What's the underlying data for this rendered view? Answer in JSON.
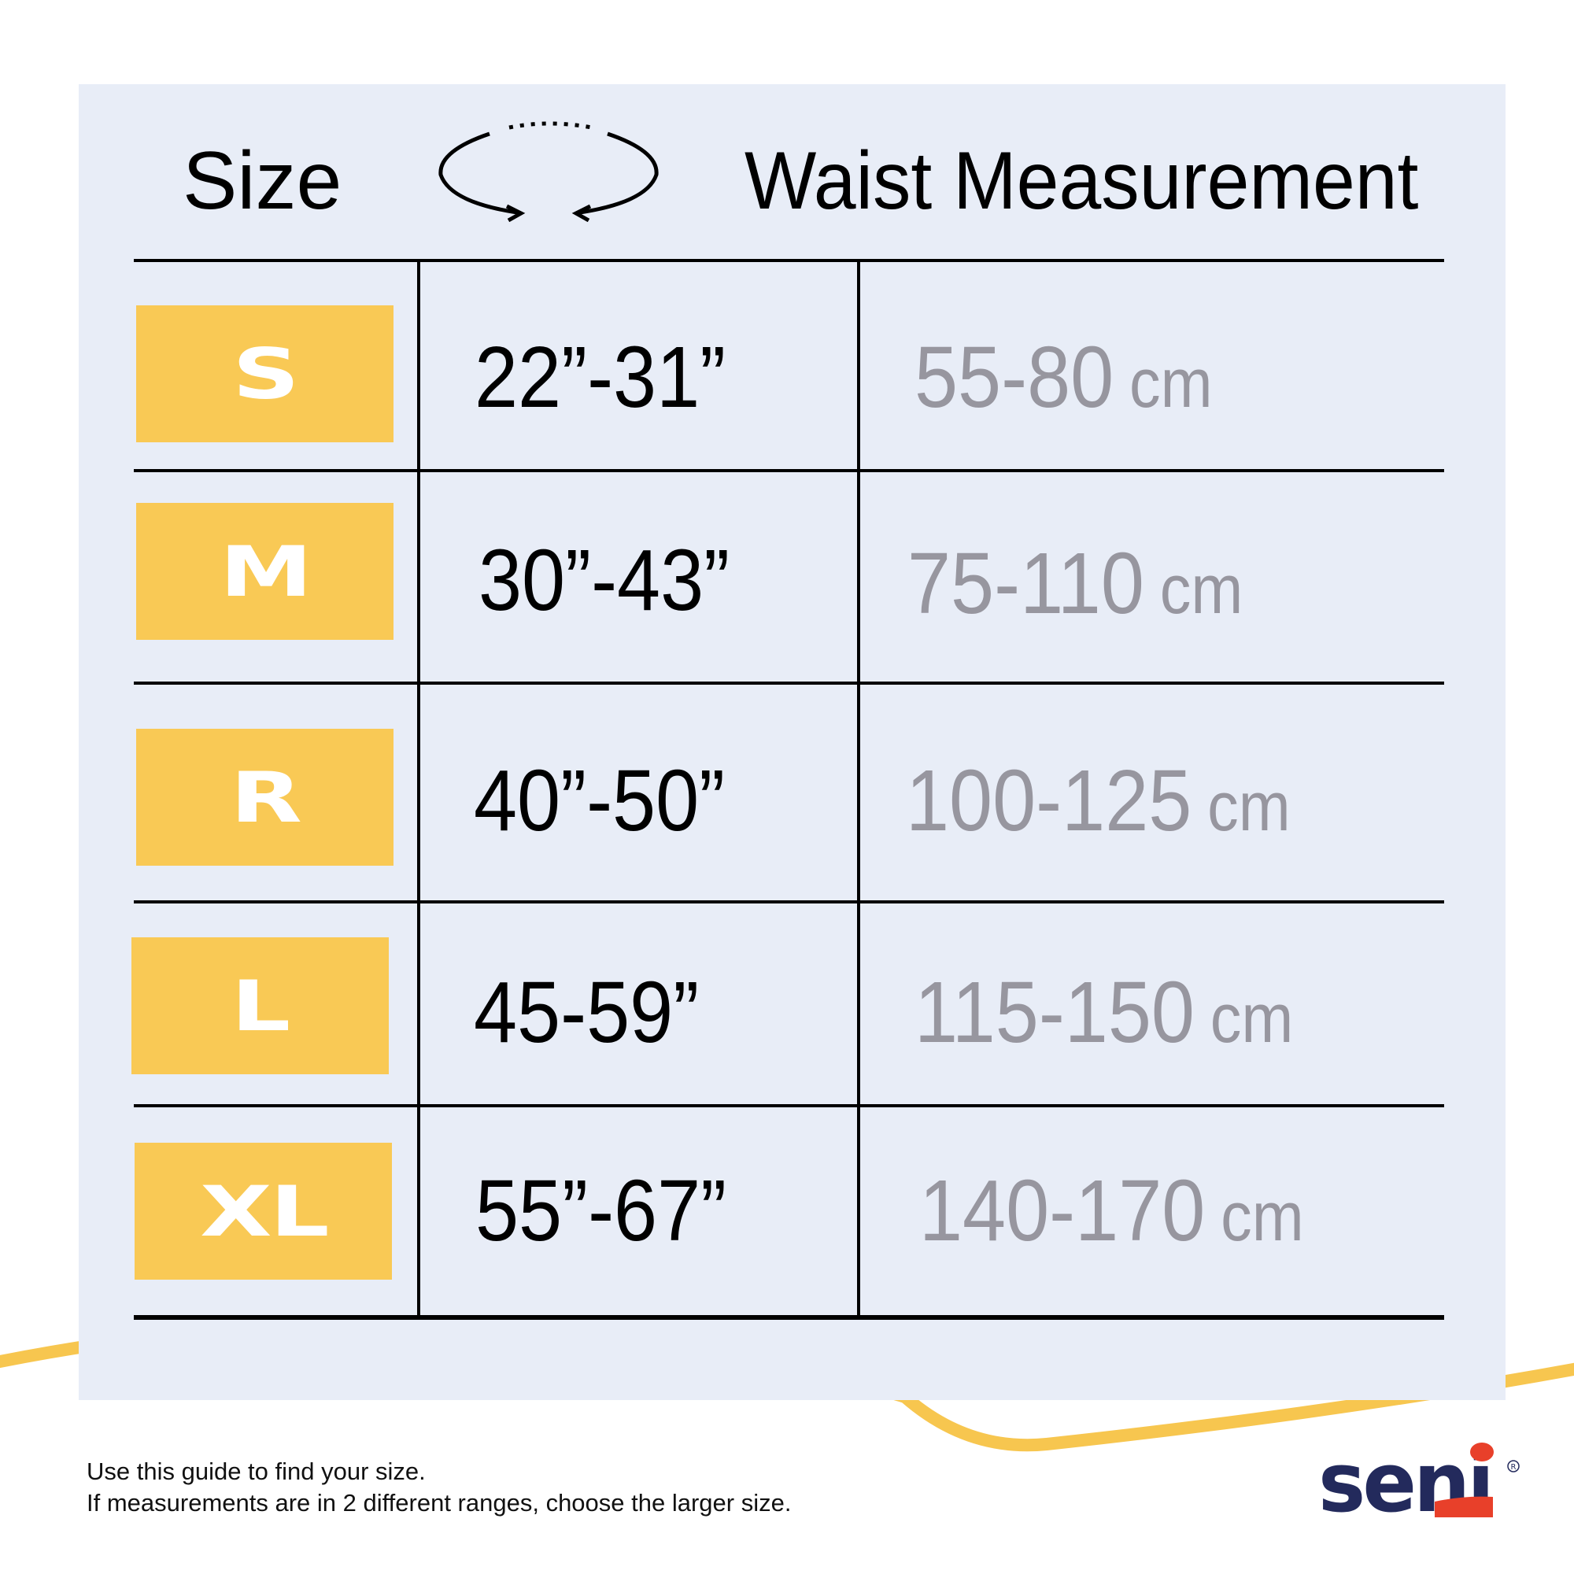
{
  "header": {
    "size_label": "Size",
    "waist_label": "Waist Measurement",
    "icon": "circular-arrows-icon"
  },
  "rows": [
    {
      "size": "S",
      "inches": "22”-31”",
      "cm": "55-80",
      "unit": "cm"
    },
    {
      "size": "M",
      "inches": "30”-43”",
      "cm": "75-110",
      "unit": "cm"
    },
    {
      "size": "R",
      "inches": "40”-50”",
      "cm": "100-125",
      "unit": "cm"
    },
    {
      "size": "L",
      "inches": "45-59”",
      "cm": "115-150",
      "unit": "cm"
    },
    {
      "size": "XL",
      "inches": "55”-67”",
      "cm": "140-170",
      "unit": "cm"
    }
  ],
  "footer": {
    "line1": "Use this guide to find your size.",
    "line2": "If measurements are in 2 different ranges, choose the larger size."
  },
  "brand": {
    "logo_text": "seni",
    "navy": "#232a5c",
    "red": "#e8402a"
  },
  "colors": {
    "panel": "#e8edf7",
    "size_box": "#f9c955",
    "cm_text": "#97969f",
    "swoosh": "#f7c64f"
  }
}
